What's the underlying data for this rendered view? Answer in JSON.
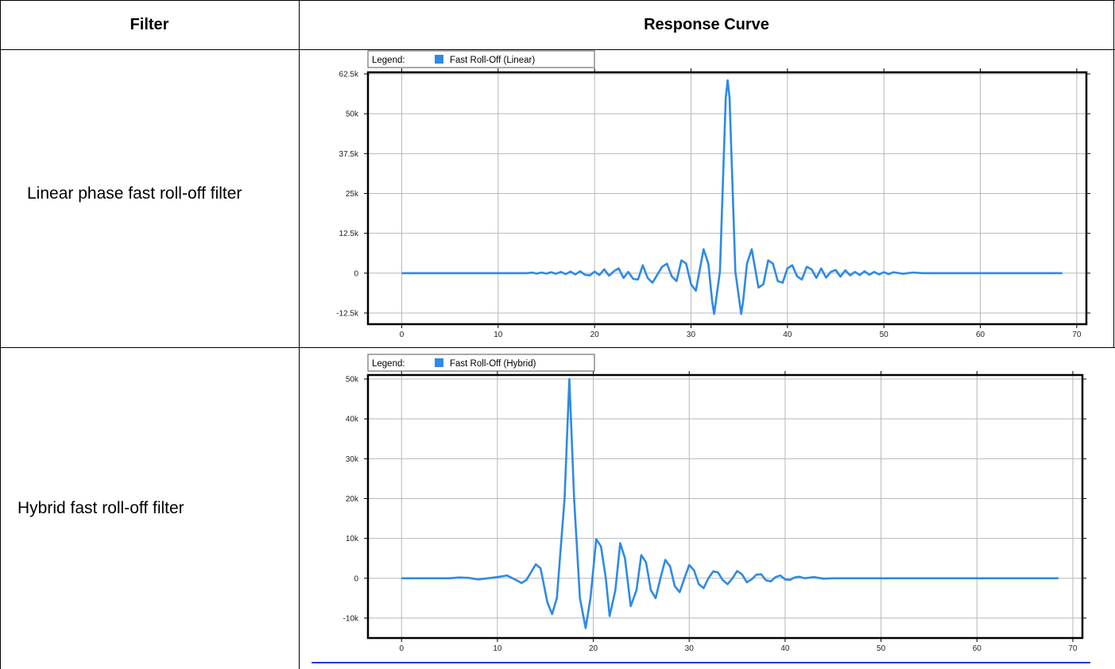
{
  "table": {
    "headers": [
      "Filter",
      "Response Curve"
    ],
    "rows": [
      {
        "filter": "Linear phase fast roll-off filter"
      },
      {
        "filter": "Hybrid fast roll-off filter"
      }
    ]
  },
  "chart_data": [
    {
      "type": "line",
      "legend_prefix": "Legend:",
      "legend_position": "top-left",
      "grid": true,
      "series": [
        {
          "name": "Fast Roll-Off (Linear)",
          "color": "#2e8ae6"
        }
      ],
      "xlim": [
        -3.5,
        71
      ],
      "ylim": [
        -16000,
        63000
      ],
      "xticks": [
        0,
        10,
        20,
        30,
        40,
        50,
        60,
        70
      ],
      "yticks": [
        -12500,
        0,
        12500,
        25000,
        37500,
        50000,
        62500
      ],
      "xtick_labels": [
        "0",
        "10",
        "20",
        "30",
        "40",
        "50",
        "60",
        "70"
      ],
      "ytick_labels": [
        "-12.5k",
        "0",
        "12.5k",
        "25k",
        "37.5k",
        "50k",
        "62.5k"
      ],
      "peak": {
        "x": 33.8,
        "y": 60500
      },
      "points": [
        [
          0,
          0
        ],
        [
          13,
          0
        ],
        [
          13.5,
          200
        ],
        [
          14,
          -150
        ],
        [
          14.5,
          200
        ],
        [
          15,
          -150
        ],
        [
          15.5,
          300
        ],
        [
          16,
          -200
        ],
        [
          16.5,
          400
        ],
        [
          17,
          -300
        ],
        [
          17.5,
          500
        ],
        [
          18,
          -400
        ],
        [
          18.5,
          600
        ],
        [
          19,
          -500
        ],
        [
          19.5,
          -700
        ],
        [
          20,
          500
        ],
        [
          20.5,
          -600
        ],
        [
          21,
          1200
        ],
        [
          21.5,
          -800
        ],
        [
          22,
          600
        ],
        [
          22.5,
          1500
        ],
        [
          23,
          -1500
        ],
        [
          23.5,
          400
        ],
        [
          24,
          -1800
        ],
        [
          24.5,
          -2000
        ],
        [
          25,
          2500
        ],
        [
          25.5,
          -1500
        ],
        [
          26,
          -3000
        ],
        [
          27,
          2000
        ],
        [
          27.5,
          3000
        ],
        [
          28,
          -1000
        ],
        [
          28.5,
          -2500
        ],
        [
          29,
          4000
        ],
        [
          29.5,
          3000
        ],
        [
          30,
          -3500
        ],
        [
          30.5,
          -5500
        ],
        [
          31.3,
          7500
        ],
        [
          31.8,
          3000
        ],
        [
          32.2,
          -9000
        ],
        [
          32.4,
          -12800
        ],
        [
          33,
          500
        ],
        [
          33.6,
          55000
        ],
        [
          33.8,
          60500
        ],
        [
          34,
          55000
        ],
        [
          34.6,
          500
        ],
        [
          35.2,
          -12800
        ],
        [
          35.4,
          -9000
        ],
        [
          35.8,
          3000
        ],
        [
          36.3,
          7500
        ],
        [
          37,
          -4500
        ],
        [
          37.5,
          -3500
        ],
        [
          38,
          4000
        ],
        [
          38.5,
          3000
        ],
        [
          39,
          -2500
        ],
        [
          39.5,
          -3000
        ],
        [
          40,
          1500
        ],
        [
          40.5,
          2500
        ],
        [
          41,
          -1000
        ],
        [
          41.5,
          -2000
        ],
        [
          42,
          2000
        ],
        [
          42.5,
          1200
        ],
        [
          43,
          -1500
        ],
        [
          43.5,
          1500
        ],
        [
          44,
          -1400
        ],
        [
          44.5,
          400
        ],
        [
          45,
          1000
        ],
        [
          45.5,
          -1100
        ],
        [
          46,
          900
        ],
        [
          46.5,
          -700
        ],
        [
          47,
          400
        ],
        [
          47.5,
          -600
        ],
        [
          48,
          600
        ],
        [
          48.5,
          -500
        ],
        [
          49,
          400
        ],
        [
          49.5,
          -400
        ],
        [
          50,
          300
        ],
        [
          50.5,
          -300
        ],
        [
          51,
          300
        ],
        [
          52,
          -200
        ],
        [
          53,
          200
        ],
        [
          54,
          0
        ],
        [
          68.5,
          0
        ]
      ]
    },
    {
      "type": "line",
      "legend_prefix": "Legend:",
      "legend_position": "top-left",
      "grid": true,
      "series": [
        {
          "name": "Fast Roll-Off (Hybrid)",
          "color": "#2e8ae6"
        }
      ],
      "xlim": [
        -3.5,
        71
      ],
      "ylim": [
        -15000,
        51000
      ],
      "xticks": [
        0,
        10,
        20,
        30,
        40,
        50,
        60,
        70
      ],
      "yticks": [
        -10000,
        0,
        10000,
        20000,
        30000,
        40000,
        50000
      ],
      "xtick_labels": [
        "0",
        "10",
        "20",
        "30",
        "40",
        "50",
        "60",
        "70"
      ],
      "ytick_labels": [
        "-10k",
        "0",
        "10k",
        "20k",
        "30k",
        "40k",
        "50k"
      ],
      "peak": {
        "x": 17.5,
        "y": 50000
      },
      "points": [
        [
          0,
          0
        ],
        [
          5,
          0
        ],
        [
          6,
          200
        ],
        [
          7,
          100
        ],
        [
          8,
          -300
        ],
        [
          9,
          0
        ],
        [
          10,
          300
        ],
        [
          11,
          700
        ],
        [
          12,
          -500
        ],
        [
          12.5,
          -1200
        ],
        [
          13,
          -500
        ],
        [
          14,
          3500
        ],
        [
          14.5,
          2500
        ],
        [
          15.2,
          -6000
        ],
        [
          15.7,
          -9000
        ],
        [
          16.2,
          -5000
        ],
        [
          17,
          20000
        ],
        [
          17.5,
          50000
        ],
        [
          18,
          20000
        ],
        [
          18.6,
          -5000
        ],
        [
          19.2,
          -12500
        ],
        [
          19.7,
          -5000
        ],
        [
          20.3,
          9800
        ],
        [
          20.8,
          8000
        ],
        [
          21.3,
          0
        ],
        [
          21.7,
          -9500
        ],
        [
          22.3,
          -3000
        ],
        [
          22.8,
          8800
        ],
        [
          23.3,
          5000
        ],
        [
          23.9,
          -7000
        ],
        [
          24.5,
          -3000
        ],
        [
          25,
          5800
        ],
        [
          25.5,
          4000
        ],
        [
          26,
          -3000
        ],
        [
          26.5,
          -5000
        ],
        [
          27,
          0
        ],
        [
          27.5,
          4600
        ],
        [
          28,
          3000
        ],
        [
          28.5,
          -2000
        ],
        [
          29,
          -3500
        ],
        [
          29.5,
          0
        ],
        [
          30,
          3300
        ],
        [
          30.5,
          2000
        ],
        [
          31,
          -1500
        ],
        [
          31.5,
          -2500
        ],
        [
          32,
          0
        ],
        [
          32.5,
          1700
        ],
        [
          33,
          1500
        ],
        [
          33.5,
          -500
        ],
        [
          34,
          -1500
        ],
        [
          34.5,
          0
        ],
        [
          35,
          1800
        ],
        [
          35.5,
          1000
        ],
        [
          36,
          -1000
        ],
        [
          36.5,
          -300
        ],
        [
          37,
          900
        ],
        [
          37.5,
          1000
        ],
        [
          38,
          -500
        ],
        [
          38.5,
          -800
        ],
        [
          39,
          300
        ],
        [
          39.5,
          700
        ],
        [
          40,
          -300
        ],
        [
          40.5,
          -400
        ],
        [
          41,
          200
        ],
        [
          41.5,
          400
        ],
        [
          42,
          0
        ],
        [
          43,
          300
        ],
        [
          44,
          -100
        ],
        [
          45,
          0
        ],
        [
          68.5,
          0
        ]
      ]
    }
  ]
}
